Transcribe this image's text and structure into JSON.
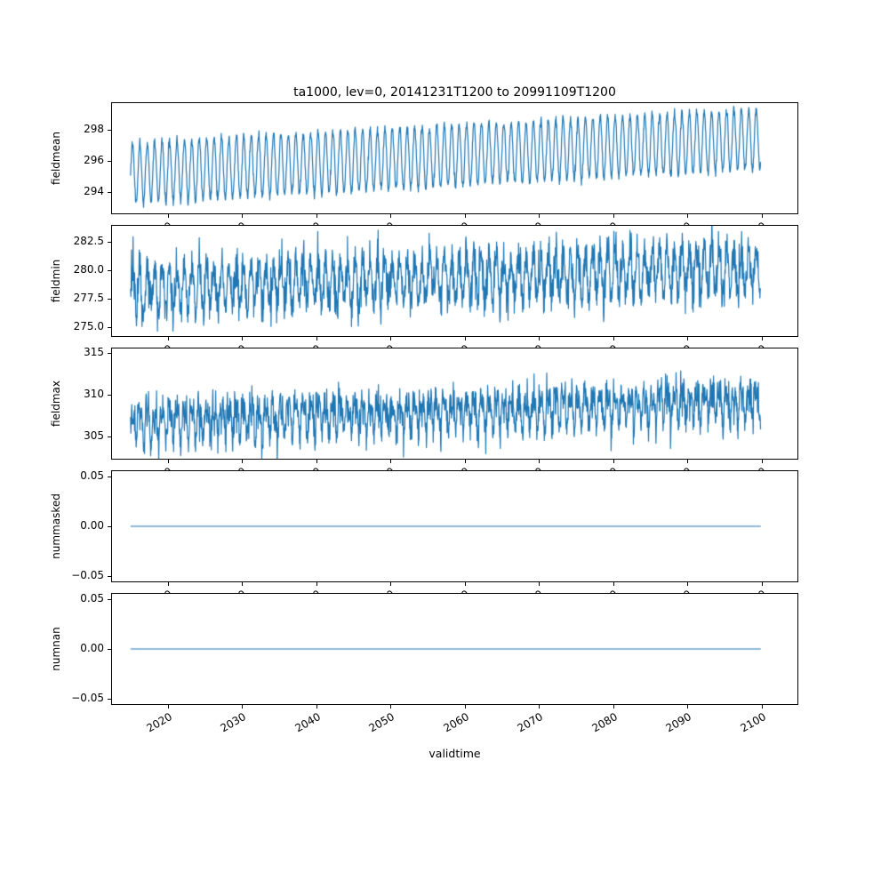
{
  "figure": {
    "title": "ta1000, lev=0, 20141231T1200 to 20991109T1200",
    "xlabel": "validtime",
    "line_color": "#1f77b4",
    "background": "#ffffff",
    "frame_color": "#000000"
  },
  "x_axis": {
    "xlim": [
      2012.5,
      2104.8
    ],
    "ticks": [
      {
        "v": 2020,
        "label": "2020"
      },
      {
        "v": 2030,
        "label": "2030"
      },
      {
        "v": 2040,
        "label": "2040"
      },
      {
        "v": 2050,
        "label": "2050"
      },
      {
        "v": 2060,
        "label": "2060"
      },
      {
        "v": 2070,
        "label": "2070"
      },
      {
        "v": 2080,
        "label": "2080"
      },
      {
        "v": 2090,
        "label": "2090"
      },
      {
        "v": 2100,
        "label": "2100"
      }
    ]
  },
  "chart_data": [
    {
      "type": "line",
      "ylabel": "fieldmean",
      "ylim": [
        292.6,
        299.7
      ],
      "yticks": [
        {
          "v": 294,
          "label": "294"
        },
        {
          "v": 296,
          "label": "296"
        },
        {
          "v": 298,
          "label": "298"
        }
      ],
      "x_start": 2015.0,
      "x_end": 2099.86,
      "description": "annual seasonal cycle rising slowly over the century",
      "model": {
        "kind": "seasonal",
        "base_start": 295.2,
        "base_end": 297.4,
        "amp": 1.95,
        "harmonic2": 0.0,
        "noise_sd": 0.15,
        "spike_amp": 0.0,
        "samples_per_year": 24,
        "seed": 11
      }
    },
    {
      "type": "line",
      "ylabel": "fieldmin",
      "ylim": [
        274.2,
        283.9
      ],
      "yticks": [
        {
          "v": 275.0,
          "label": "275.0"
        },
        {
          "v": 277.5,
          "label": "277.5"
        },
        {
          "v": 280.0,
          "label": "280.0"
        },
        {
          "v": 282.5,
          "label": "282.5"
        }
      ],
      "x_start": 2015.0,
      "x_end": 2099.86,
      "description": "noisy annual cycle of field minimum, slight warming trend",
      "model": {
        "kind": "seasonal",
        "base_start": 278.3,
        "base_end": 280.2,
        "amp": 1.9,
        "harmonic2": 0.0,
        "noise_sd": 0.95,
        "spike_amp": 0.0,
        "samples_per_year": 24,
        "seed": 22
      }
    },
    {
      "type": "line",
      "ylabel": "fieldmax",
      "ylim": [
        302.3,
        315.5
      ],
      "yticks": [
        {
          "v": 305,
          "label": "305"
        },
        {
          "v": 310,
          "label": "310"
        },
        {
          "v": 315,
          "label": "315"
        }
      ],
      "x_start": 2015.0,
      "x_end": 2099.86,
      "description": "spiky annual cycle of field maximum, upward trend toward 315",
      "model": {
        "kind": "seasonal",
        "base_start": 306.4,
        "base_end": 309.0,
        "amp": 1.6,
        "harmonic2": 1.0,
        "noise_sd": 1.0,
        "spike_amp": 2.0,
        "samples_per_year": 24,
        "seed": 33
      }
    },
    {
      "type": "line",
      "ylabel": "nummasked",
      "ylim": [
        -0.055,
        0.055
      ],
      "yticks": [
        {
          "v": -0.05,
          "label": "−0.05"
        },
        {
          "v": 0.0,
          "label": "0.00"
        },
        {
          "v": 0.05,
          "label": "0.05"
        }
      ],
      "x_start": 2015.0,
      "x_end": 2099.86,
      "description": "constant zero line",
      "model": {
        "kind": "constant",
        "value": 0.0
      }
    },
    {
      "type": "line",
      "ylabel": "numnan",
      "ylim": [
        -0.055,
        0.055
      ],
      "yticks": [
        {
          "v": -0.05,
          "label": "−0.05"
        },
        {
          "v": 0.0,
          "label": "0.00"
        },
        {
          "v": 0.05,
          "label": "0.05"
        }
      ],
      "x_start": 2015.0,
      "x_end": 2099.86,
      "description": "constant zero line",
      "model": {
        "kind": "constant",
        "value": 0.0
      }
    }
  ]
}
